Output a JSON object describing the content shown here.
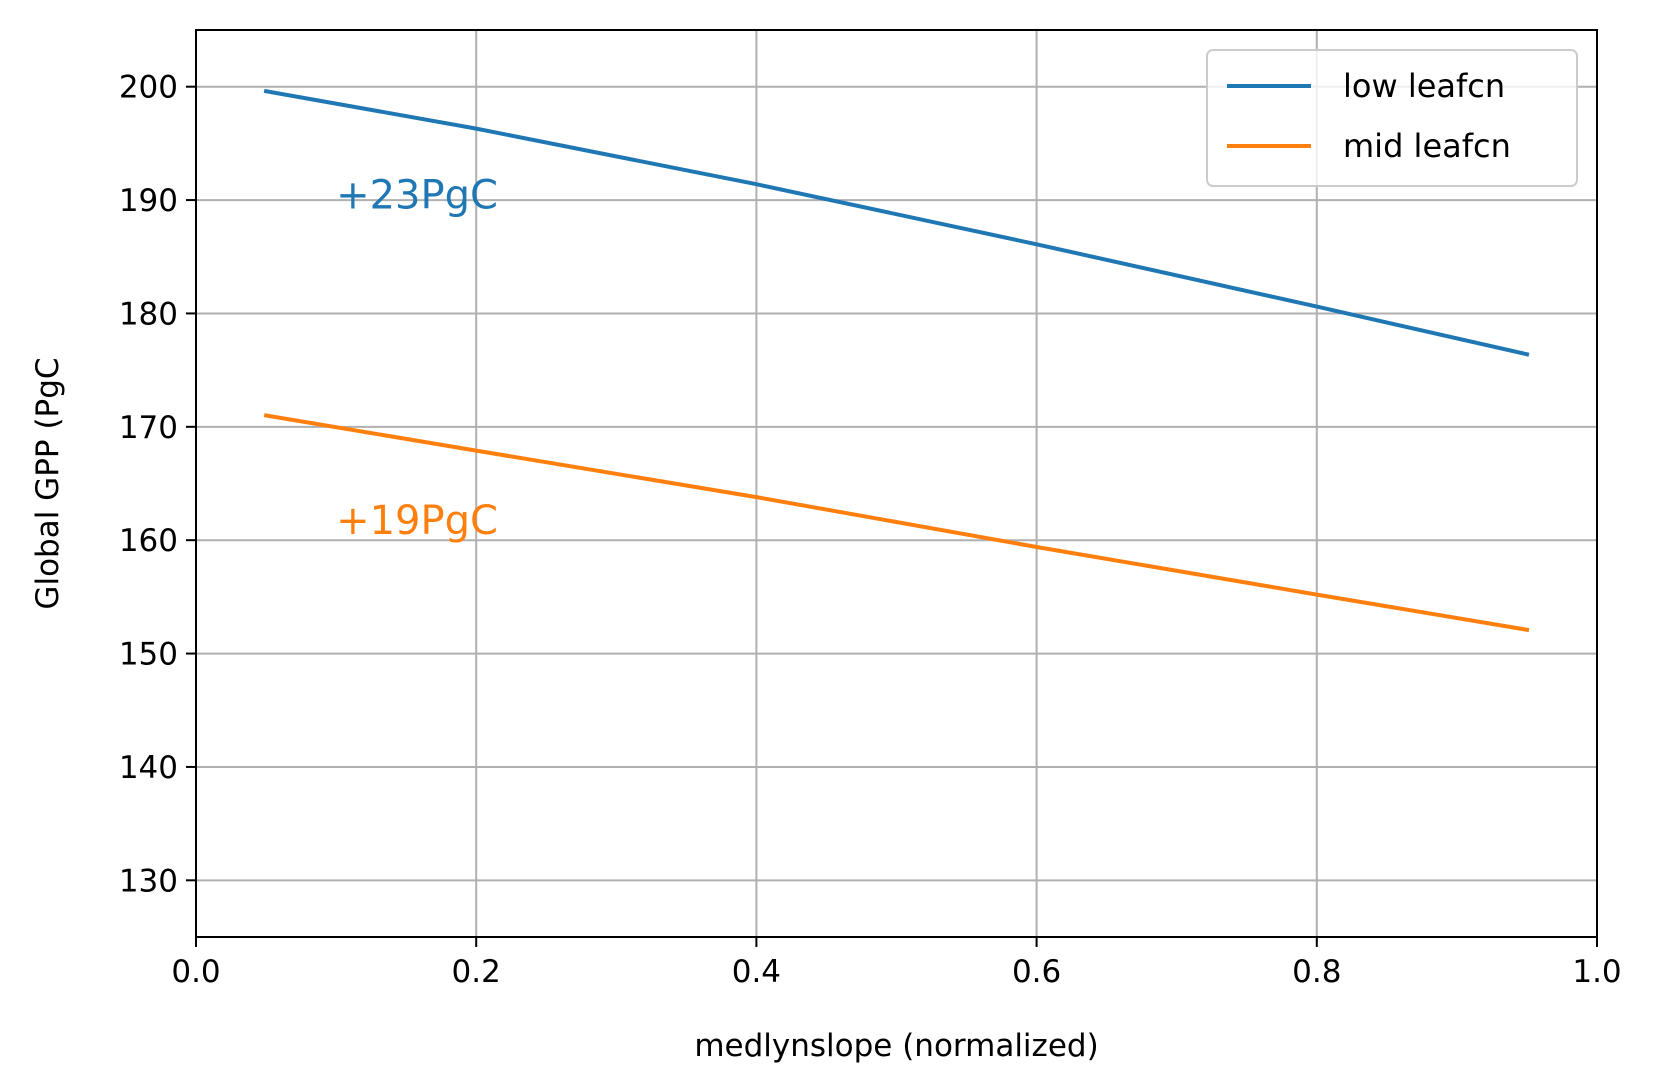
{
  "chart_data": {
    "type": "line",
    "xlabel": "medlynslope (normalized)",
    "ylabel": "Global GPP (PgC",
    "xlim": [
      0.0,
      1.0
    ],
    "ylim": [
      125,
      205
    ],
    "xticks": [
      "0.0",
      "0.2",
      "0.4",
      "0.6",
      "0.8",
      "1.0"
    ],
    "xtick_values": [
      0.0,
      0.2,
      0.4,
      0.6,
      0.8,
      1.0
    ],
    "yticks": [
      "130",
      "140",
      "150",
      "160",
      "170",
      "180",
      "190",
      "200"
    ],
    "ytick_values": [
      130,
      140,
      150,
      160,
      170,
      180,
      190,
      200
    ],
    "grid": true,
    "legend_position": "top-right",
    "series": [
      {
        "name": "low leafcn",
        "color": "#1f77b4",
        "x": [
          0.05,
          0.2,
          0.4,
          0.6,
          0.8,
          0.95
        ],
        "y": [
          199.6,
          196.3,
          191.4,
          186.1,
          180.6,
          176.4
        ]
      },
      {
        "name": "mid leafcn",
        "color": "#ff7f0e",
        "x": [
          0.05,
          0.2,
          0.4,
          0.6,
          0.8,
          0.95
        ],
        "y": [
          171.0,
          167.9,
          163.8,
          159.4,
          155.2,
          152.1
        ]
      }
    ],
    "annotations": [
      {
        "text": "+23PgC",
        "x": 0.1,
        "y": 190.5,
        "color": "#1f77b4"
      },
      {
        "text": "+19PgC",
        "x": 0.1,
        "y": 161.8,
        "color": "#ff7f0e"
      }
    ]
  }
}
